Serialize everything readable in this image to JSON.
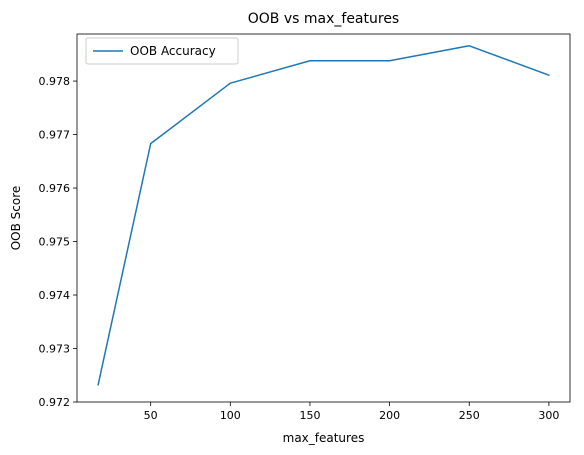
{
  "chart_data": {
    "type": "line",
    "title": "OOB vs max_features",
    "xlabel": "max_features",
    "ylabel": "OOB Score",
    "xlim": [
      3.75,
      313.25
    ],
    "ylim": [
      0.972,
      0.97888
    ],
    "xticks": [
      50,
      100,
      150,
      200,
      250,
      300
    ],
    "yticks": [
      0.972,
      0.973,
      0.974,
      0.975,
      0.976,
      0.977,
      0.978
    ],
    "grid": false,
    "legend_position": "upper-left",
    "series": [
      {
        "name": "OOB Accuracy",
        "color": "#1f77b4",
        "x": [
          17,
          50,
          100,
          150,
          200,
          250,
          300
        ],
        "y": [
          0.97232,
          0.97683,
          0.97796,
          0.97838,
          0.97838,
          0.97866,
          0.97811
        ]
      }
    ]
  }
}
